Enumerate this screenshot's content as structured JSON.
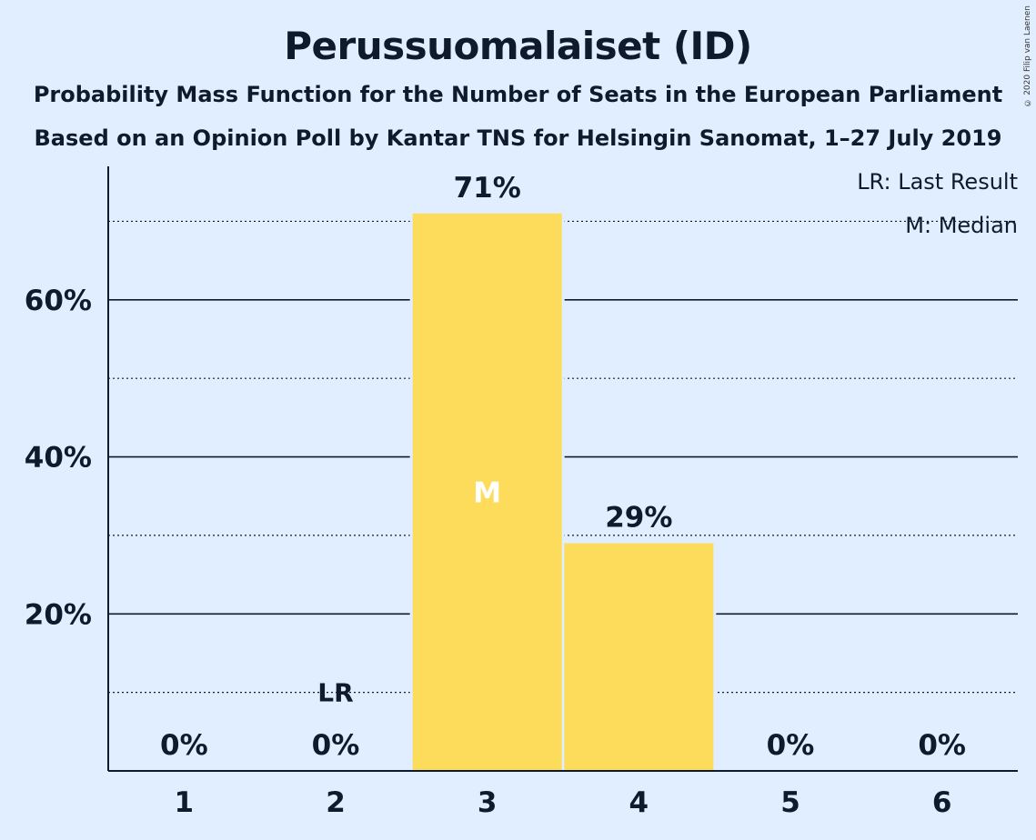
{
  "title": "Perussuomalaiset (ID)",
  "subtitle_1": "Probability Mass Function for the Number of Seats in the European Parliament",
  "subtitle_2": "Based on an Opinion Poll by Kantar TNS for Helsingin Sanomat, 1–27 July 2019",
  "copyright": "© 2020 Filip van Laenen",
  "legend": {
    "last_result": "LR: Last Result",
    "median": "M: Median"
  },
  "colors": {
    "background": "#e0eeff",
    "bar": "#fddb5b",
    "text": "#0f1a2e"
  },
  "chart_data": {
    "type": "bar",
    "categories": [
      "1",
      "2",
      "3",
      "4",
      "5",
      "6"
    ],
    "values": [
      0,
      0,
      71,
      29,
      0,
      0
    ],
    "value_labels": [
      "0%",
      "0%",
      "71%",
      "29%",
      "0%",
      "0%"
    ],
    "ylim": [
      0,
      77
    ],
    "y_ticks": [
      20,
      40,
      60
    ],
    "y_tick_labels": [
      "20%",
      "40%",
      "60%"
    ],
    "y_minor_gridlines": [
      10,
      30,
      50,
      70
    ],
    "grid": true,
    "last_result_category": "2",
    "last_result_label": "LR",
    "median_category": "3",
    "median_label": "M",
    "xlabel": "",
    "ylabel": ""
  }
}
